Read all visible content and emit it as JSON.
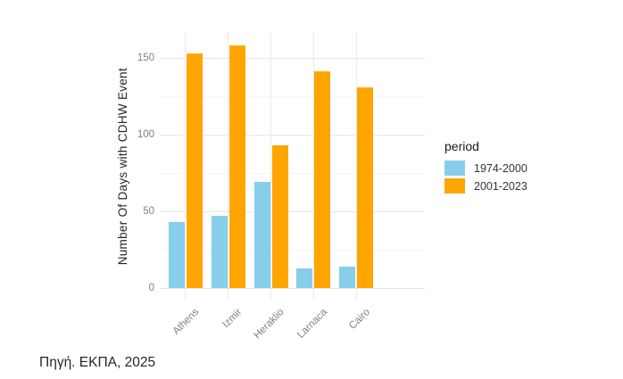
{
  "figure": {
    "caption": "Πηγή. ΕΚΠΑ, 2025"
  },
  "chart_data": {
    "type": "bar",
    "title": "",
    "categories": [
      "Athens",
      "Izmir",
      "Heraklio",
      "Larnaca",
      "Cairo"
    ],
    "series": [
      {
        "name": "1974-2000",
        "color": "#87CEEB",
        "values": [
          43,
          47,
          69,
          13,
          14
        ]
      },
      {
        "name": "2001-2023",
        "color": "#FFA500",
        "values": [
          153,
          158,
          93,
          141,
          131
        ]
      }
    ],
    "xlabel": "",
    "ylabel": "Number Of Days with CDHW Event",
    "ylim": [
      0,
      167
    ],
    "yticks": [
      0,
      50,
      100,
      150
    ],
    "yticks_minor": [
      25,
      75,
      125
    ],
    "grid": "major and minor horizontal, major vertical at categories",
    "legend": {
      "title": "period",
      "position": "right",
      "entries": [
        "1974-2000",
        "2001-2023"
      ]
    }
  },
  "colors": {
    "series_1974_2000": "#87CEEB",
    "series_2001_2023": "#FFA500",
    "major_grid": "#e7e7e7",
    "minor_grid": "#f4f4f4",
    "tick_label": "#808080",
    "axis_title": "#262626",
    "background": "#ffffff"
  }
}
